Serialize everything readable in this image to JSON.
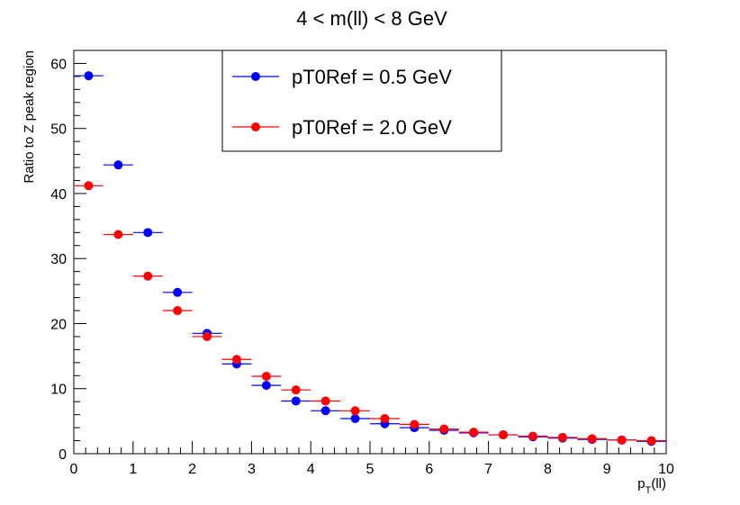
{
  "chart_data": {
    "type": "scatter",
    "title": "4 < m(ll) < 8 GeV",
    "xlabel_main": "p",
    "xlabel_sub": "T",
    "xlabel_suffix": "(ll)",
    "ylabel": "Ratio to Z peak region",
    "xlim": [
      0,
      10
    ],
    "ylim": [
      0,
      62
    ],
    "x_ticks": [
      "0",
      "1",
      "2",
      "3",
      "4",
      "5",
      "6",
      "7",
      "8",
      "9",
      "10"
    ],
    "y_ticks": [
      "0",
      "10",
      "20",
      "30",
      "40",
      "50",
      "60"
    ],
    "x_error_half_width": 0.25,
    "legend_position": "top-center",
    "series": [
      {
        "name": "pT0Ref = 0.5 GeV",
        "color": "#0000ff",
        "x": [
          0.25,
          0.75,
          1.25,
          1.75,
          2.25,
          2.75,
          3.25,
          3.75,
          4.25,
          4.75,
          5.25,
          5.75,
          6.25,
          6.75,
          7.25,
          7.75,
          8.25,
          8.75,
          9.25,
          9.75
        ],
        "y": [
          58.1,
          44.4,
          34.0,
          24.8,
          18.5,
          13.8,
          10.5,
          8.1,
          6.6,
          5.4,
          4.6,
          4.0,
          3.6,
          3.2,
          2.9,
          2.6,
          2.4,
          2.2,
          2.1,
          1.9
        ]
      },
      {
        "name": "pT0Ref = 2.0 GeV",
        "color": "#ff0000",
        "x": [
          0.25,
          0.75,
          1.25,
          1.75,
          2.25,
          2.75,
          3.25,
          3.75,
          4.25,
          4.75,
          5.25,
          5.75,
          6.25,
          6.75,
          7.25,
          7.75,
          8.25,
          8.75,
          9.25,
          9.75
        ],
        "y": [
          41.2,
          33.7,
          27.3,
          22.0,
          18.0,
          14.5,
          11.9,
          9.8,
          8.1,
          6.6,
          5.4,
          4.5,
          3.8,
          3.3,
          2.9,
          2.7,
          2.5,
          2.3,
          2.1,
          2.0
        ]
      }
    ]
  }
}
